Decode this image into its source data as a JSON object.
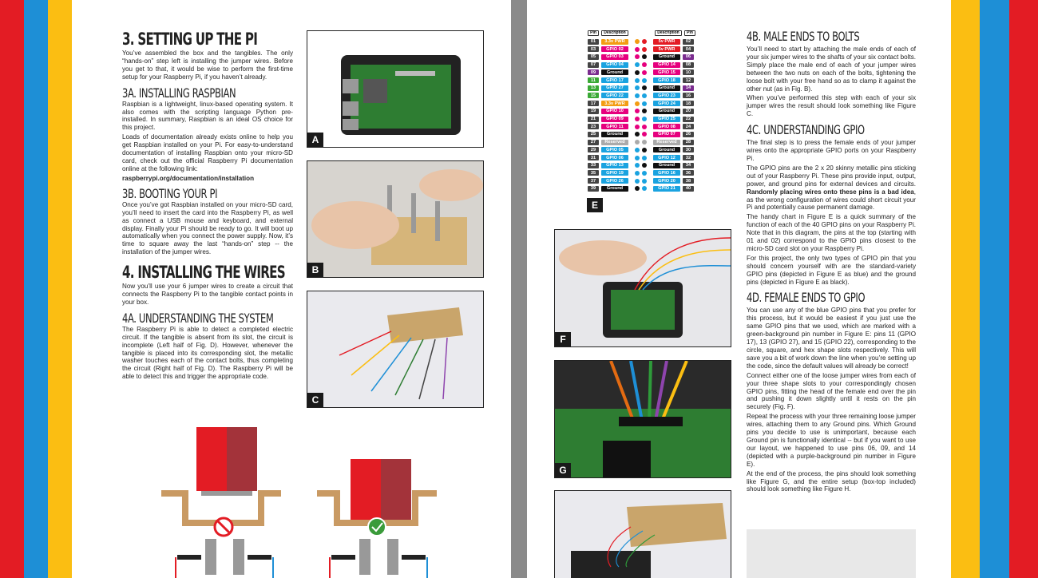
{
  "colors": {
    "red": "#e31c24",
    "blue": "#1e8fd6",
    "yellow": "#fbbe12",
    "bg": "#8a8a8a"
  },
  "left": {
    "s3_title": "3. SETTING UP THE PI",
    "s3_body": "You’ve assembled the box and the tangibles. The only “hands-on” step left is installing the jumper wires. Before you get to that, it would be wise to perform the first-time setup for your Raspberry Pi, if you haven’t already.",
    "s3a_title": "3A. INSTALLING RASPBIAN",
    "s3a_body1": "Raspbian is a lightweight, linux-based operating system. It also comes with the scripting language Python pre-installed. In summary, Raspbian is an ideal OS choice for this project.",
    "s3a_body2": "Loads of documentation already exists online to help you get Raspbian installed on your Pi. For easy-to-understand documentation of installing Raspbian onto your micro-SD card, check out the official Raspberry Pi documentation online at the following link:",
    "s3a_link": "raspberrypi.org/documentation/installation",
    "s3b_title": "3B. BOOTING YOUR PI",
    "s3b_body": "Once you’ve got Raspbian installed on your micro-SD card, you’ll need to insert the card into the Raspberry Pi, as well as connect a USB mouse and keyboard, and external display. Finally your Pi should be ready to go. It will boot up automatically when you connect the power supply. Now, it’s time to square away the last “hands-on” step -- the installation of the jumper wires.",
    "s4_title": "4. INSTALLING THE WIRES",
    "s4_body": "Now you’ll use your 6 jumper wires to create a circuit that connects the Raspberry Pi to the tangible contact points in your box.",
    "s4a_title": "4A. UNDERSTANDING THE SYSTEM",
    "s4a_body": "The Raspberry Pi is able to detect a completed electric circuit. If the tangible is absent from its slot, the circuit is incomplete (Left half of Fig. D). However, whenever the tangible is placed into its corresponding slot, the metallic washer touches each of the contact bolts, thus completing the circuit (Right half of Fig. D). The Raspberry Pi will be able to detect this and trigger the appropriate code.",
    "fig_a": "A",
    "fig_b": "B",
    "fig_c": "C"
  },
  "right": {
    "gpio_header_pin": "Pin",
    "gpio_header_desc": "Description",
    "fig_e": "E",
    "fig_f": "F",
    "fig_g": "G",
    "gpio_rows": [
      [
        "01",
        "3.3v PWR",
        "5v PWR",
        "02"
      ],
      [
        "03",
        "GPIO 02",
        "5v PWR",
        "04"
      ],
      [
        "05",
        "GPIO 03",
        "Ground",
        "06"
      ],
      [
        "07",
        "GPIO 04",
        "GPIO 14",
        "08"
      ],
      [
        "09",
        "Ground",
        "GPIO 15",
        "10"
      ],
      [
        "11",
        "GPIO 17",
        "GPIO 18",
        "12"
      ],
      [
        "13",
        "GPIO 27",
        "Ground",
        "14"
      ],
      [
        "15",
        "GPIO 22",
        "GPIO 23",
        "16"
      ],
      [
        "17",
        "3.3v PWR",
        "GPIO 24",
        "18"
      ],
      [
        "19",
        "GPIO 10",
        "Ground",
        "20"
      ],
      [
        "21",
        "GPIO 09",
        "GPIO 25",
        "22"
      ],
      [
        "23",
        "GPIO 11",
        "GPIO 08",
        "24"
      ],
      [
        "25",
        "Ground",
        "GPIO 07",
        "26"
      ],
      [
        "27",
        "Reserved",
        "Reserved",
        "28"
      ],
      [
        "29",
        "GPIO 05",
        "Ground",
        "30"
      ],
      [
        "31",
        "GPIO 06",
        "GPIO 12",
        "32"
      ],
      [
        "33",
        "GPIO 13",
        "Ground",
        "34"
      ],
      [
        "35",
        "GPIO 19",
        "GPIO 16",
        "36"
      ],
      [
        "37",
        "GPIO 26",
        "GPIO 20",
        "38"
      ],
      [
        "39",
        "Ground",
        "GPIO 21",
        "40"
      ]
    ],
    "s4b_title": "4B. MALE ENDS TO BOLTS",
    "s4b_body1": "You’ll need to start by attaching the male ends of each of your six jumper wires to the shafts of your six contact bolts. Simply place the male end of each of your jumper wires between the two nuts on each of the bolts, tightening the loose bolt with your free hand so as to clamp it against the other nut (as in Fig. B).",
    "s4b_body2": "When you’ve performed this step with each of your six jumper wires the result should look something like Figure C.",
    "s4c_title": "4C. UNDERSTANDING GPIO",
    "s4c_body1": "The final step is to press the female ends of your jumper wires onto the appropriate GPIO ports on your Raspberry Pi.",
    "s4c_body2a": "The GPIO pins are the 2 x 20 skinny metallic pins sticking out of your Raspberry Pi. These pins provide input, output, power, and ground pins for external devices and circuits. ",
    "s4c_body2b": "Randomly placing wires onto these pins is a bad idea",
    "s4c_body2c": ", as the wrong configuration of wires could short circuit your Pi and potentially cause permanent damage.",
    "s4c_body3": "The handy chart in Figure E is a quick summary of the function of each of the 40 GPIO pins on your Raspberry Pi. Note that in this diagram, the pins at the top (starting with 01 and 02) correspond to the GPIO pins closest to the micro-SD card slot on your Raspberry Pi.",
    "s4c_body4": "For this project, the only two types of GPIO pin that you should concern yourself with are the standard-variety GPIO pins (depicted in Figure E as blue) and the ground pins (depicted in Figure E as black).",
    "s4d_title": "4D. FEMALE ENDS TO GPIO",
    "s4d_body1": "You can use any of the blue GPIO pins that you prefer for this process, but it would be easiest if you just use the same GPIO pins that we used, which are marked with a green-background pin number in Figure E: pins 11 (GPIO 17), 13 (GPIO 27), and 15 (GPIO 22), corresponding to the circle, square, and hex shape slots respectively. This will save you a bit of work down the line when you’re setting up the code, since the default values will already be correct!",
    "s4d_body2": "Connect either one of the loose jumper wires from each of your three shape slots to your correspondingly chosen GPIO pins, fitting the head of the female end over the pin and pushing it down slightly until it rests on the pin securely (Fig. F).",
    "s4d_body3": "Repeat the process with your three remaining loose jumper wires, attaching them to any Ground pins. Which Ground pins you decide to use is unimportant, because each Ground pin is functionally identical -- but if you want to use our layout, we happened to use pins 06, 09, and 14 (depicted with a purple-background pin number in Figure E).",
    "s4d_body4": "At the end of the process, the pins should look something like Figure G, and the entire setup (box-top included) should look something like Figure H."
  }
}
